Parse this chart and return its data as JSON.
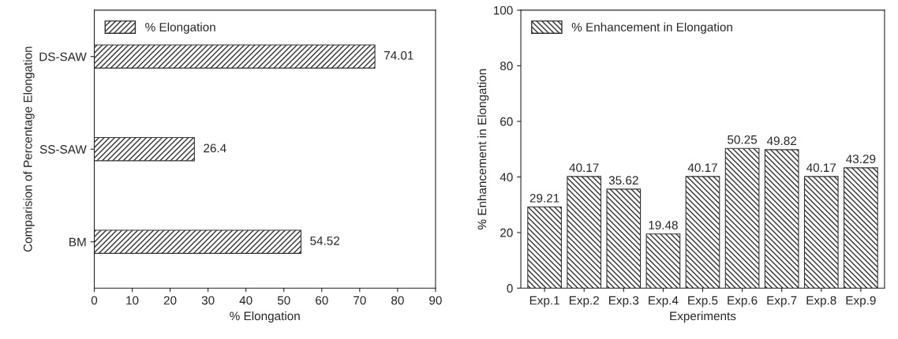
{
  "chart_data": [
    {
      "type": "bar",
      "orientation": "horizontal",
      "categories": [
        "DS-SAW",
        "SS-SAW",
        "BM"
      ],
      "xlabel": "% Elongation",
      "ylabel": "Comparision of Percentage Elongation",
      "xlim": [
        0,
        90
      ],
      "xticks": [
        0,
        10,
        20,
        30,
        40,
        50,
        60,
        70,
        80,
        90
      ],
      "series": [
        {
          "name": "% Elongation",
          "color": "#333333",
          "values": [
            74.01,
            26.4,
            54.52
          ]
        }
      ],
      "data_labels": true,
      "legend": "top left",
      "grid": false
    },
    {
      "type": "bar",
      "categories": [
        "Exp.1",
        "Exp.2",
        "Exp.3",
        "Exp.4",
        "Exp.5",
        "Exp.6",
        "Exp.7",
        "Exp.8",
        "Exp.9"
      ],
      "xlabel": "Experiments",
      "ylabel": "% Enhancement in Elongation",
      "ylim": [
        0,
        100
      ],
      "yticks": [
        0,
        20,
        40,
        60,
        80,
        100
      ],
      "series": [
        {
          "name": "% Enhancement in Elongation",
          "color": "#333333",
          "values": [
            29.21,
            40.17,
            35.62,
            19.48,
            40.17,
            50.25,
            49.82,
            40.17,
            43.29
          ]
        }
      ],
      "data_labels": true,
      "legend": "top left",
      "grid": false
    }
  ]
}
